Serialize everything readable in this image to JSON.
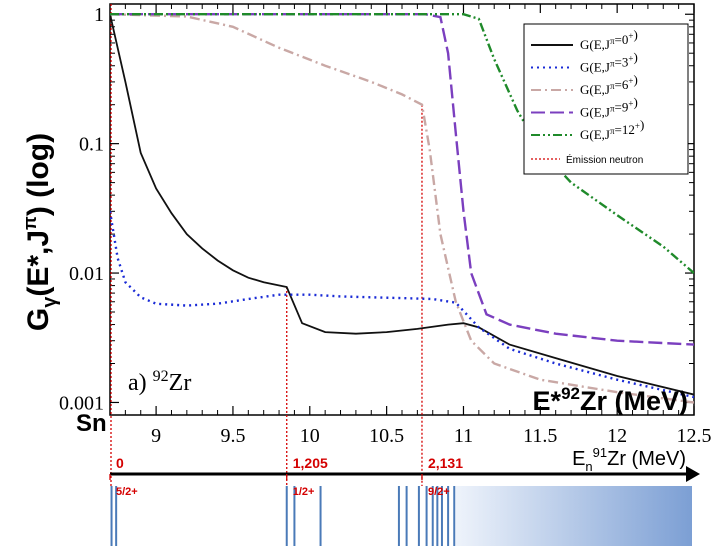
{
  "chart_data": {
    "type": "line",
    "y_scale": "log",
    "xlim": [
      8.7,
      12.5
    ],
    "ylim": [
      0.0008,
      1.2
    ],
    "y_ticks": [
      1,
      0.1,
      0.01,
      0.001
    ],
    "y_tick_labels": [
      "1",
      "0.1",
      "0.01",
      "0.001"
    ],
    "x_ticks": [
      9,
      9.5,
      10,
      10.5,
      11,
      11.5,
      12,
      12.5
    ],
    "x_tick_labels": [
      "9",
      "9.5",
      "10",
      "10.5",
      "11",
      "11.5",
      "12",
      "12.5"
    ],
    "ylabel_main": "G",
    "ylabel_sub": "γ",
    "ylabel_rest": "(E*,J",
    "ylabel_sup": "π",
    "ylabel_end": ") (log)",
    "panel_label_prefix": "a) ",
    "panel_label_sup": "92",
    "panel_label_elem": "Zr",
    "xlabel_main_pre": "E*",
    "xlabel_main_sup": "92",
    "xlabel_main_post": "Zr (MeV)",
    "xlabel_neutron_pre": "E",
    "xlabel_neutron_sub": "n",
    "xlabel_neutron_sup": "91",
    "xlabel_neutron_post": "Zr (MeV)",
    "sn_label": "Sn",
    "series": [
      {
        "name": "G(E,J^π=0^+)",
        "color": "#111111",
        "dash": "",
        "x": [
          8.7,
          8.8,
          8.9,
          9.0,
          9.1,
          9.2,
          9.3,
          9.4,
          9.5,
          9.6,
          9.7,
          9.85,
          9.95,
          10.1,
          10.3,
          10.5,
          10.7,
          10.9,
          11.0,
          11.1,
          11.3,
          11.6,
          12.0,
          12.5
        ],
        "y": [
          1.0,
          0.3,
          0.085,
          0.045,
          0.029,
          0.02,
          0.0155,
          0.0125,
          0.0105,
          0.0092,
          0.0085,
          0.0078,
          0.0041,
          0.0035,
          0.0034,
          0.0035,
          0.0037,
          0.004,
          0.0041,
          0.0038,
          0.0028,
          0.0022,
          0.0016,
          0.00115
        ]
      },
      {
        "name": "G(E,J^π=3^+)",
        "color": "#1a2bd6",
        "dash": "2,4",
        "x": [
          8.7,
          8.75,
          8.8,
          8.9,
          9.0,
          9.2,
          9.4,
          9.6,
          9.8,
          10.0,
          10.2,
          10.4,
          10.6,
          10.8,
          10.95,
          11.1,
          11.3,
          11.6,
          12.0,
          12.5
        ],
        "y": [
          0.03,
          0.013,
          0.0085,
          0.0065,
          0.0058,
          0.0056,
          0.0058,
          0.0063,
          0.0068,
          0.0068,
          0.0066,
          0.0065,
          0.0064,
          0.0063,
          0.0059,
          0.0038,
          0.0026,
          0.002,
          0.0015,
          0.0011
        ]
      },
      {
        "name": "G(E,J^π=6^+)",
        "color": "#c9a8a5",
        "dash": "10,4,2,4",
        "x": [
          8.7,
          9.2,
          9.5,
          9.8,
          10.1,
          10.4,
          10.6,
          10.73,
          10.78,
          10.85,
          10.95,
          11.05,
          11.2,
          11.5,
          12.0,
          12.5
        ],
        "y": [
          1.0,
          0.96,
          0.8,
          0.55,
          0.4,
          0.3,
          0.24,
          0.2,
          0.09,
          0.02,
          0.006,
          0.003,
          0.002,
          0.0015,
          0.0012,
          0.001
        ]
      },
      {
        "name": "G(E,J^π=9^+)",
        "color": "#7b3fbf",
        "dash": "14,5",
        "x": [
          8.7,
          9.5,
          10.2,
          10.75,
          10.85,
          10.9,
          10.95,
          11.0,
          11.05,
          11.15,
          11.3,
          11.6,
          12.0,
          12.5
        ],
        "y": [
          1.0,
          1.0,
          1.0,
          1.0,
          0.95,
          0.5,
          0.12,
          0.03,
          0.01,
          0.0048,
          0.004,
          0.0034,
          0.003,
          0.0028
        ]
      },
      {
        "name": "G(E,J^π=12^+)",
        "color": "#1f8a2a",
        "dash": "9,3,2,3,2,3",
        "x": [
          8.7,
          10.0,
          11.0,
          11.1,
          11.2,
          11.35,
          11.5,
          11.7,
          12.0,
          12.3,
          12.5
        ],
        "y": [
          1.0,
          1.0,
          1.0,
          0.92,
          0.45,
          0.18,
          0.09,
          0.05,
          0.028,
          0.016,
          0.01
        ]
      }
    ],
    "legend": {
      "placement": "top-right",
      "entries": [
        "G(E,J^π=0^+)",
        "G(E,J^π=3^+)",
        "G(E,J^π=6^+)",
        "G(E,J^π=9^+)",
        "G(E,J^π=12^+)"
      ],
      "neutron_label": "Émission neutron"
    },
    "neutron_lines": {
      "color": "#d40000",
      "x": [
        8.7,
        9.85,
        10.73
      ]
    },
    "level_scheme": {
      "x_labels": [
        "0",
        "1,205",
        "2,131"
      ],
      "x_label_at": [
        8.7,
        9.85,
        10.73
      ],
      "spin_labels": [
        "5/2+",
        "1/2+",
        "9/2+"
      ],
      "levels": [
        8.71,
        8.74,
        9.85,
        9.9,
        10.07,
        10.58,
        10.63,
        10.71,
        10.76,
        10.8,
        10.83,
        10.86,
        10.9,
        10.94
      ],
      "continuum_start": 10.95,
      "color": "#4a7ab8"
    }
  }
}
